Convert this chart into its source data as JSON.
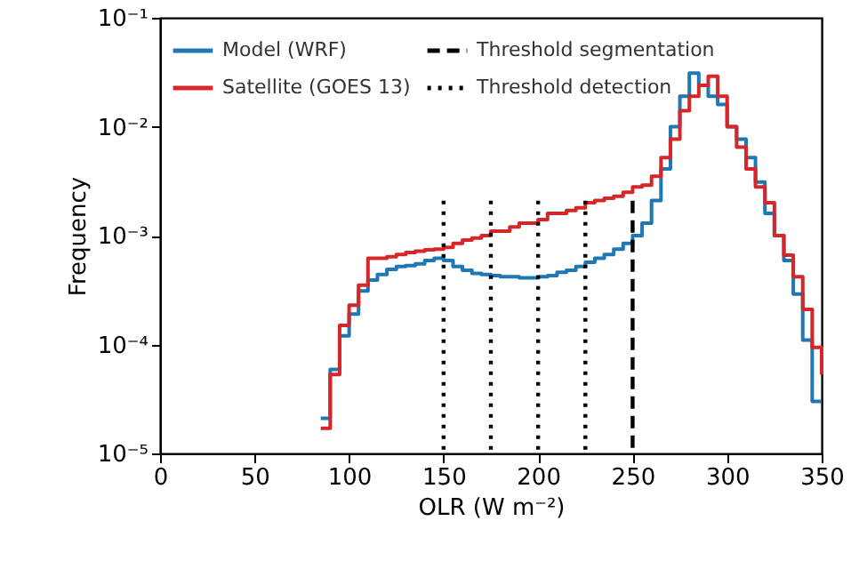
{
  "chart_data": {
    "type": "step",
    "xlabel": "OLR (W m⁻²)",
    "ylabel": "Frequency",
    "x": [
      85,
      90,
      95,
      100,
      105,
      110,
      115,
      120,
      125,
      130,
      135,
      140,
      145,
      150,
      155,
      160,
      165,
      170,
      175,
      180,
      185,
      190,
      195,
      200,
      205,
      210,
      215,
      220,
      225,
      230,
      235,
      240,
      245,
      250,
      255,
      260,
      265,
      270,
      275,
      280,
      285,
      290,
      295,
      300,
      305,
      310,
      315,
      320,
      325,
      330,
      335,
      340,
      345,
      350
    ],
    "series": [
      {
        "name": "Model (WRF)",
        "color": "#1f77b4",
        "values": [
          2.1e-05,
          5.9e-05,
          0.00012,
          0.00019,
          0.00031,
          0.00039,
          0.00044,
          0.00049,
          0.00052,
          0.00053,
          0.00055,
          0.00059,
          0.00062,
          0.00059,
          0.00052,
          0.00048,
          0.00045,
          0.00044,
          0.00043,
          0.00042,
          0.00042,
          0.00041,
          0.00041,
          0.00042,
          0.00043,
          0.00046,
          0.00048,
          0.00052,
          0.00057,
          0.00062,
          0.00067,
          0.00075,
          0.00085,
          0.001,
          0.0013,
          0.0021,
          0.0041,
          0.01,
          0.019,
          0.031,
          0.024,
          0.019,
          0.016,
          0.01,
          0.0077,
          0.0052,
          0.0031,
          0.0016,
          0.001,
          0.00059,
          0.00029,
          0.00011,
          3e-05,
          3e-05
        ]
      },
      {
        "name": "Satellite (GOES 13)",
        "color": "#d62728",
        "values": [
          1.7e-05,
          5.3e-05,
          0.00015,
          0.00023,
          0.00035,
          0.00062,
          0.00062,
          0.00064,
          0.00067,
          0.0007,
          0.00072,
          0.00074,
          0.00075,
          0.00078,
          0.00085,
          0.00091,
          0.00095,
          0.001,
          0.0011,
          0.0011,
          0.0012,
          0.0013,
          0.0013,
          0.0014,
          0.0016,
          0.0016,
          0.0017,
          0.0018,
          0.002,
          0.0021,
          0.0022,
          0.0023,
          0.0025,
          0.0028,
          0.0029,
          0.0035,
          0.0052,
          0.0077,
          0.014,
          0.019,
          0.024,
          0.029,
          0.019,
          0.01,
          0.0065,
          0.0041,
          0.0028,
          0.002,
          0.001,
          0.00066,
          0.00042,
          0.00021,
          9.4e-05,
          5.3e-05
        ]
      }
    ],
    "ref_lines": [
      {
        "axis": "x",
        "value": 250,
        "label": "Threshold segmentation",
        "color": "#000000",
        "line_style": "dashed"
      },
      {
        "axis": "x",
        "value": 150,
        "label": "Threshold detection",
        "color": "#000000",
        "line_style": "dotted"
      },
      {
        "axis": "x",
        "value": 175,
        "color": "#000000",
        "line_style": "dotted"
      },
      {
        "axis": "x",
        "value": 200,
        "color": "#000000",
        "line_style": "dotted"
      },
      {
        "axis": "x",
        "value": 225,
        "color": "#000000",
        "line_style": "dotted"
      }
    ],
    "xlim": [
      0,
      350
    ],
    "xticks": [
      0,
      50,
      100,
      150,
      200,
      250,
      300,
      350
    ],
    "ylim": [
      1e-05,
      0.1
    ],
    "log": "y",
    "yticks": [
      {
        "value": 1e-05,
        "label": "10⁻⁵"
      },
      {
        "value": 0.0001,
        "label": "10⁻⁴"
      },
      {
        "value": 0.001,
        "label": "10⁻³"
      },
      {
        "value": 0.01,
        "label": "10⁻²"
      },
      {
        "value": 0.1,
        "label": "10⁻¹"
      }
    ],
    "grid": false,
    "legend": "top left",
    "line_style": "solid"
  }
}
